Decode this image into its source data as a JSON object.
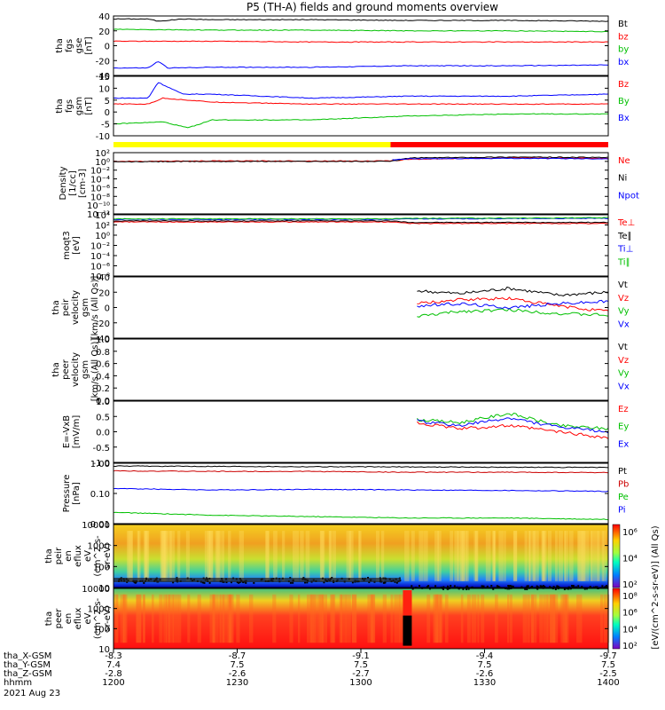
{
  "title": "P5 (TH-A) fields and ground moments overview",
  "chart_data": [
    {
      "type": "line",
      "ylabel": [
        "tha",
        "fgs",
        "gse",
        "[nT]"
      ],
      "ylim": [
        -40,
        40
      ],
      "yticks": [
        "40",
        "20",
        "0",
        "-20",
        "-40"
      ],
      "series": [
        {
          "name": "Bt",
          "color": "#000000",
          "x": [
            0,
            0.07,
            0.09,
            0.14,
            0.2,
            0.4,
            0.6,
            0.8,
            1.0
          ],
          "values": [
            36,
            36,
            33,
            36,
            35,
            35,
            34,
            34,
            33
          ]
        },
        {
          "name": "bz",
          "color": "#ff0000",
          "x": [
            0,
            0.2,
            0.4,
            0.6,
            0.8,
            1.0
          ],
          "values": [
            6,
            6,
            5,
            5,
            5,
            5
          ]
        },
        {
          "name": "by",
          "color": "#00c000",
          "x": [
            0,
            0.2,
            0.4,
            0.6,
            0.8,
            1.0
          ],
          "values": [
            22,
            21,
            21,
            20,
            20,
            19
          ]
        },
        {
          "name": "bx",
          "color": "#0000ff",
          "x": [
            0,
            0.07,
            0.09,
            0.11,
            0.2,
            0.4,
            0.6,
            0.8,
            1.0
          ],
          "values": [
            -30,
            -30,
            -21,
            -30,
            -29,
            -29,
            -27,
            -27,
            -26
          ]
        }
      ]
    },
    {
      "type": "line",
      "ylabel": [
        "tha",
        "fgs",
        "gsm",
        "[nT]"
      ],
      "ylim": [
        -15,
        15
      ],
      "yticks": [
        "15",
        "10",
        "5",
        "0",
        "-5",
        "-10"
      ],
      "series": [
        {
          "name": "Bz",
          "color": "#ff0000",
          "x": [
            0,
            0.07,
            0.1,
            0.2,
            0.4,
            0.6,
            0.8,
            1.0
          ],
          "values": [
            1,
            1,
            4,
            2,
            1,
            1,
            1,
            1
          ]
        },
        {
          "name": "By",
          "color": "#00c000",
          "x": [
            0,
            0.1,
            0.15,
            0.2,
            0.4,
            0.6,
            0.8,
            1.0
          ],
          "values": [
            -9,
            -8,
            -11,
            -7,
            -7,
            -5,
            -4,
            -4
          ]
        },
        {
          "name": "Bx",
          "color": "#0000ff",
          "x": [
            0,
            0.07,
            0.09,
            0.14,
            0.2,
            0.4,
            0.6,
            0.8,
            1.0
          ],
          "values": [
            4,
            4,
            12,
            6,
            6,
            4,
            5,
            5,
            6
          ]
        }
      ]
    },
    {
      "type": "line",
      "ylabel": [
        "Density",
        "[1/cc]",
        "[cm-3]"
      ],
      "yscale": "log",
      "ylim": [
        -12,
        2
      ],
      "yticks": [
        "10²",
        "10⁰",
        "10⁻²",
        "10⁻⁴",
        "10⁻⁶",
        "10⁻⁸",
        "10⁻¹⁰",
        "10⁻¹²"
      ],
      "series": [
        {
          "name": "Ne",
          "color": "#ff0000",
          "x": [
            0,
            0.2,
            0.4,
            0.56,
            0.6,
            0.8,
            1.0
          ],
          "values": [
            0.0,
            0.1,
            0.1,
            0.1,
            0.5,
            0.8,
            0.7
          ]
        },
        {
          "name": "Ni",
          "color": "#000000",
          "x": [
            0,
            0.2,
            0.4,
            0.56,
            0.6,
            0.8,
            1.0
          ],
          "values": [
            -0.1,
            0.0,
            0.0,
            0.0,
            0.8,
            1.0,
            0.9
          ]
        },
        {
          "name": "Npot",
          "color": "#0000ff",
          "x": [
            0.56,
            0.6,
            0.8,
            1.0
          ],
          "values": [
            0.3,
            0.6,
            0.7,
            0.6
          ]
        }
      ]
    },
    {
      "type": "line",
      "ylabel": [
        "moqt3",
        "[eV]"
      ],
      "yscale": "log",
      "ylim": [
        -8,
        4
      ],
      "yticks": [
        "10⁴",
        "10²",
        "10⁰",
        "10⁻²",
        "10⁻⁴",
        "10⁻⁶",
        "10⁻⁸"
      ],
      "series": [
        {
          "name": "Te⊥",
          "color": "#ff0000",
          "x": [
            0,
            0.56,
            0.6,
            1.0
          ],
          "values": [
            2.6,
            2.6,
            2.3,
            2.3
          ]
        },
        {
          "name": "Te∥",
          "color": "#000000",
          "x": [
            0,
            0.56,
            0.6,
            1.0
          ],
          "values": [
            2.8,
            2.8,
            2.5,
            2.5
          ]
        },
        {
          "name": "Ti⊥",
          "color": "#0000ff",
          "x": [
            0,
            0.56,
            0.6,
            1.0
          ],
          "values": [
            3.1,
            3.1,
            3.2,
            3.3
          ]
        },
        {
          "name": "Ti∥",
          "color": "#00c000",
          "x": [
            0,
            0.56,
            0.6,
            1.0
          ],
          "values": [
            3.2,
            3.2,
            3.3,
            3.4
          ]
        }
      ]
    },
    {
      "type": "line",
      "ylabel": [
        "tha",
        "peir",
        "velocity",
        "gsm",
        "[km/s (All Qs)]"
      ],
      "ylim": [
        -40,
        40
      ],
      "yticks": [
        "40",
        "20",
        "0",
        "-20",
        "-40"
      ],
      "series": [
        {
          "name": "Vt",
          "color": "#000000",
          "x": [
            0.61,
            0.7,
            0.8,
            0.9,
            1.0
          ],
          "values": [
            22,
            18,
            25,
            16,
            20
          ]
        },
        {
          "name": "Vz",
          "color": "#ff0000",
          "x": [
            0.61,
            0.7,
            0.8,
            0.9,
            1.0
          ],
          "values": [
            5,
            10,
            12,
            2,
            -5
          ]
        },
        {
          "name": "Vy",
          "color": "#00c000",
          "x": [
            0.61,
            0.7,
            0.8,
            0.9,
            1.0
          ],
          "values": [
            -12,
            -5,
            -3,
            -8,
            -10
          ]
        },
        {
          "name": "Vx",
          "color": "#0000ff",
          "x": [
            0.61,
            0.7,
            0.8,
            0.9,
            1.0
          ],
          "values": [
            2,
            5,
            0,
            5,
            8
          ]
        }
      ]
    },
    {
      "type": "line",
      "ylabel": [
        "tha",
        "peer",
        "velocity",
        "gsm",
        "[km/s (All Qs)]"
      ],
      "ylim": [
        0,
        1
      ],
      "yticks": [
        "1.0",
        "0.8",
        "0.6",
        "0.4",
        "0.2",
        "0.0"
      ],
      "series": [
        {
          "name": "Vt",
          "color": "#000000",
          "x": [],
          "values": []
        },
        {
          "name": "Vz",
          "color": "#ff0000",
          "x": [],
          "values": []
        },
        {
          "name": "Vy",
          "color": "#00c000",
          "x": [],
          "values": []
        },
        {
          "name": "Vx",
          "color": "#0000ff",
          "x": [],
          "values": []
        }
      ]
    },
    {
      "type": "line",
      "ylabel": [
        "E=-VxB",
        "[mV/m]"
      ],
      "ylim": [
        -1,
        1
      ],
      "yticks": [
        "1.0",
        "0.5",
        "0.0",
        "-0.5",
        "-1.0"
      ],
      "series": [
        {
          "name": "Ez",
          "color": "#ff0000",
          "x": [
            0.61,
            0.7,
            0.8,
            0.9,
            1.0
          ],
          "values": [
            0.3,
            0.1,
            0.2,
            0.0,
            -0.2
          ]
        },
        {
          "name": "Ey",
          "color": "#00c000",
          "x": [
            0.61,
            0.7,
            0.8,
            0.9,
            1.0
          ],
          "values": [
            0.4,
            0.3,
            0.6,
            0.2,
            0.1
          ]
        },
        {
          "name": "Ex",
          "color": "#0000ff",
          "x": [
            0.61,
            0.7,
            0.8,
            0.9,
            1.0
          ],
          "values": [
            0.35,
            0.2,
            0.45,
            0.15,
            0.0
          ]
        }
      ]
    },
    {
      "type": "line",
      "ylabel": [
        "Pressure",
        "[nPa]"
      ],
      "yscale": "log",
      "ylim": [
        -2.1,
        0.05
      ],
      "yticks": [
        "1.00",
        "0.10",
        "0.01"
      ],
      "series": [
        {
          "name": "Pt",
          "color": "#000000",
          "x": [
            0,
            0.2,
            0.4,
            0.6,
            0.8,
            1.0
          ],
          "values": [
            -0.05,
            -0.06,
            -0.07,
            -0.08,
            -0.09,
            -0.1
          ]
        },
        {
          "name": "Pb",
          "color": "#cc0000",
          "x": [
            0,
            0.2,
            0.4,
            0.6,
            0.8,
            1.0
          ],
          "values": [
            -0.22,
            -0.24,
            -0.24,
            -0.27,
            -0.27,
            -0.28
          ]
        },
        {
          "name": "Pe",
          "color": "#00c000",
          "x": [
            0,
            0.2,
            0.4,
            0.6,
            0.8,
            1.0
          ],
          "values": [
            -1.7,
            -1.8,
            -1.85,
            -1.9,
            -1.9,
            -1.95
          ]
        },
        {
          "name": "Pi",
          "color": "#0000ff",
          "x": [
            0,
            0.2,
            0.4,
            0.6,
            0.8,
            1.0
          ],
          "values": [
            -0.85,
            -0.9,
            -0.88,
            -0.9,
            -0.92,
            -0.95
          ]
        }
      ]
    },
    {
      "type": "heatmap",
      "ylabel": [
        "tha",
        "peir",
        "en",
        "eflux",
        "eV",
        "(cm^2-s-",
        "sr-eV)"
      ],
      "yticks": [
        "10000",
        "1000",
        "100",
        "10"
      ]
    },
    {
      "type": "heatmap",
      "ylabel": [
        "tha",
        "peer",
        "en",
        "eflux",
        "eV",
        "(cm^2-s-",
        "sr-eV)"
      ],
      "yticks": [
        "10000",
        "1000",
        "100",
        "10"
      ]
    }
  ],
  "colorbar": {
    "label": "[eV/(cm^2-s-sr-eV)] (All Qs)",
    "ticks_top": [
      "10⁶",
      "10⁴",
      "10²"
    ],
    "ticks_bottom": [
      "10⁸",
      "10⁶",
      "10⁴",
      "10²"
    ]
  },
  "xaxis": {
    "rows": [
      {
        "label": "tha_X-GSM",
        "values": [
          "-8.3",
          "-8.7",
          "-9.1",
          "-9.4",
          "-9.7"
        ]
      },
      {
        "label": "tha_Y-GSM",
        "values": [
          "7.4",
          "7.5",
          "7.5",
          "7.5",
          "7.5"
        ]
      },
      {
        "label": "tha_Z-GSM",
        "values": [
          "-2.8",
          "-2.6",
          "-2.7",
          "-2.6",
          "-2.5"
        ]
      },
      {
        "label": "hhmm",
        "values": [
          "1200",
          "1230",
          "1300",
          "1330",
          "1400"
        ]
      }
    ],
    "date": "2021 Aug 23"
  },
  "mode_bar": {
    "colors": [
      "#ffff00",
      "#ff0000"
    ],
    "split": 0.56
  }
}
